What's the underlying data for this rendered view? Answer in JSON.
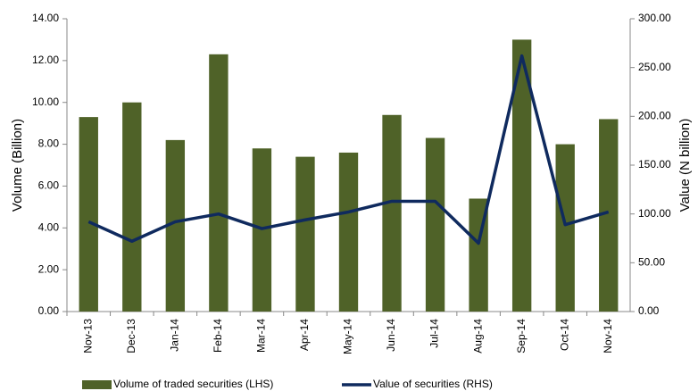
{
  "chart_data": {
    "type": "bar_line",
    "categories": [
      "Nov-13",
      "Dec-13",
      "Jan-14",
      "Feb-14",
      "Mar-14",
      "Apr-14",
      "May-14",
      "Jun-14",
      "Jul-14",
      "Aug-14",
      "Sep-14",
      "Oct-14",
      "Nov-14"
    ],
    "y_label": "Volume (Billion)",
    "y2_label": "Value (N billion)",
    "series": [
      {
        "name": "Volume of traded securities (LHS)",
        "type": "bar",
        "color": "#4f6228",
        "values": [
          9.3,
          10.0,
          8.2,
          12.3,
          7.8,
          7.4,
          7.6,
          9.4,
          8.3,
          5.4,
          13.0,
          8.0,
          9.2
        ]
      },
      {
        "name": "Value of securities (RHS)",
        "type": "line",
        "axis": "y2",
        "color": "#0f2a5e",
        "values": [
          92,
          72,
          92,
          100,
          85,
          94,
          102,
          113,
          113,
          70,
          262,
          89,
          102
        ]
      }
    ],
    "ylim": [
      0,
      14
    ],
    "yticks": [
      {
        "value": 0,
        "label": "0.00"
      },
      {
        "value": 2,
        "label": "2.00"
      },
      {
        "value": 4,
        "label": "4.00"
      },
      {
        "value": 6,
        "label": "6.00"
      },
      {
        "value": 8,
        "label": "8.00"
      },
      {
        "value": 10,
        "label": "10.00"
      },
      {
        "value": 12,
        "label": "12.00"
      },
      {
        "value": 14,
        "label": "14.00"
      }
    ],
    "y2lim": [
      0,
      300
    ],
    "y2ticks": [
      {
        "value": 0,
        "label": "0.00"
      },
      {
        "value": 50,
        "label": "50.00"
      },
      {
        "value": 100,
        "label": "100.00"
      },
      {
        "value": 150,
        "label": "150.00"
      },
      {
        "value": 200,
        "label": "200.00"
      },
      {
        "value": 250,
        "label": "250.00"
      },
      {
        "value": 300,
        "label": "300.00"
      }
    ],
    "grid": false
  }
}
